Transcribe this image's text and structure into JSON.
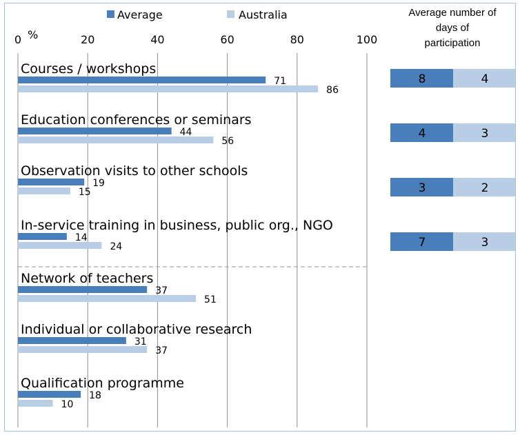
{
  "chart_data": {
    "type": "bar",
    "orientation": "horizontal",
    "unit_label": "%",
    "xlim": [
      0,
      100
    ],
    "xticks": [
      0,
      20,
      40,
      60,
      80,
      100
    ],
    "grid": true,
    "legend_position": "top",
    "series": [
      {
        "name": "Average",
        "color": "#4a7ebb"
      },
      {
        "name": "Australia",
        "color": "#b9cde5"
      }
    ],
    "categories": [
      "Courses / workshops",
      "Education conferences or seminars",
      "Observation visits to other schools",
      "In-service training in business, public org., NGO",
      "Network of teachers",
      "Individual or collaborative research",
      "Qualification programme"
    ],
    "average_values": [
      71,
      44,
      19,
      14,
      37,
      31,
      18
    ],
    "australia_values": [
      86,
      56,
      15,
      24,
      51,
      37,
      10
    ],
    "days_panel": {
      "title_lines": [
        "Average number of",
        "days of",
        "participation"
      ],
      "average_days": [
        8,
        4,
        3,
        7
      ],
      "australia_days": [
        4,
        3,
        2,
        3
      ]
    }
  }
}
